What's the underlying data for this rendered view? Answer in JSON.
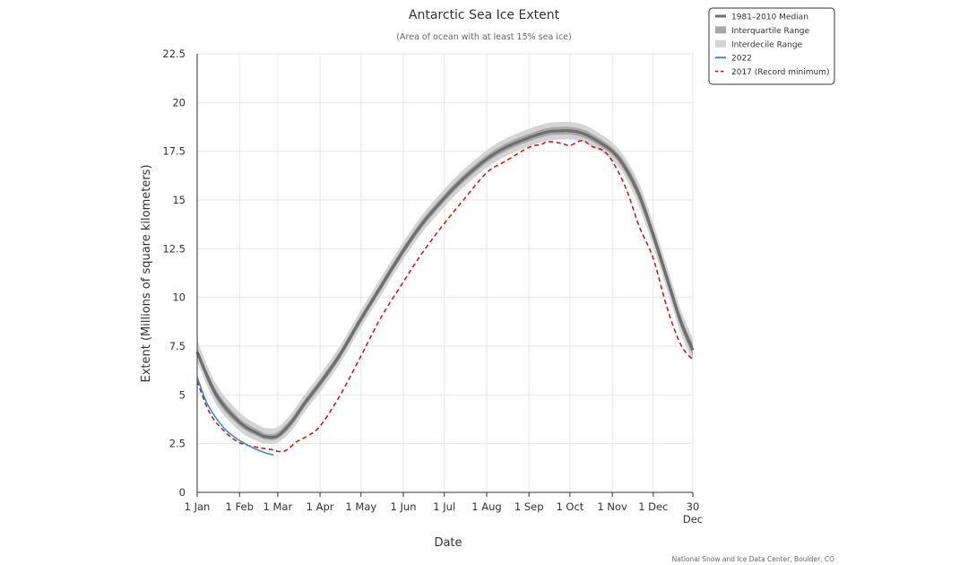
{
  "chart_data": {
    "type": "line",
    "title": "Antarctic Sea Ice Extent",
    "subtitle": "(Area of ocean with at least 15% sea ice)",
    "xlabel": "Date",
    "ylabel": "Extent (Millions of square kilometers)",
    "credit": "National Snow and Ice Data Center, Boulder, CO",
    "ylim": [
      0,
      22.5
    ],
    "xlim": [
      1,
      364
    ],
    "y_ticks": [
      {
        "value": 0,
        "label": "0"
      },
      {
        "value": 2.5,
        "label": "2.5"
      },
      {
        "value": 5,
        "label": "5"
      },
      {
        "value": 7.5,
        "label": "7.5"
      },
      {
        "value": 10,
        "label": "10"
      },
      {
        "value": 12.5,
        "label": "12.5"
      },
      {
        "value": 15,
        "label": "15"
      },
      {
        "value": 17.5,
        "label": "17.5"
      },
      {
        "value": 20,
        "label": "20"
      },
      {
        "value": 22.5,
        "label": "22.5"
      }
    ],
    "x_ticks": [
      {
        "day": 1,
        "label": "1 Jan"
      },
      {
        "day": 32,
        "label": "1 Feb"
      },
      {
        "day": 60,
        "label": "1 Mar"
      },
      {
        "day": 91,
        "label": "1 Apr"
      },
      {
        "day": 121,
        "label": "1 May"
      },
      {
        "day": 152,
        "label": "1 Jun"
      },
      {
        "day": 182,
        "label": "1 Jul"
      },
      {
        "day": 213,
        "label": "1 Aug"
      },
      {
        "day": 244,
        "label": "1 Sep"
      },
      {
        "day": 274,
        "label": "1 Oct"
      },
      {
        "day": 305,
        "label": "1 Nov"
      },
      {
        "day": 335,
        "label": "1 Dec"
      },
      {
        "day": 364,
        "label": "30\nDec"
      }
    ],
    "grid": true,
    "legend_position": "top-right",
    "legend": [
      {
        "label": "1981–2010 Median",
        "symbol": "line-thick",
        "color": "#6e6e6e"
      },
      {
        "label": "Interquartile Range",
        "symbol": "box",
        "color": "#a8a8a8"
      },
      {
        "label": "Interdecile Range",
        "symbol": "box",
        "color": "#d4d4d4"
      },
      {
        "label": "2022",
        "symbol": "line",
        "color": "#3a8fc9"
      },
      {
        "label": "2017 (Record minimum)",
        "symbol": "dash",
        "color": "#c21f1f"
      }
    ],
    "x": [
      1,
      15,
      32,
      46,
      52,
      60,
      70,
      80,
      91,
      105,
      121,
      135,
      152,
      166,
      182,
      196,
      213,
      227,
      244,
      258,
      268,
      274,
      282,
      290,
      305,
      315,
      325,
      335,
      345,
      355,
      364
    ],
    "series": [
      {
        "name": "1981–2010 Median",
        "role": "median",
        "color": "#6e6e6e",
        "values": [
          7.2,
          5.0,
          3.6,
          3.0,
          2.85,
          2.9,
          3.6,
          4.6,
          5.6,
          7.0,
          8.9,
          10.5,
          12.4,
          13.8,
          15.1,
          16.1,
          17.1,
          17.7,
          18.2,
          18.5,
          18.55,
          18.55,
          18.45,
          18.2,
          17.5,
          16.6,
          15.2,
          13.2,
          11.0,
          8.8,
          7.3
        ]
      },
      {
        "name": "Interquartile Range",
        "role": "band",
        "color": "#a8a8a8",
        "lower": [
          7.0,
          4.75,
          3.4,
          2.85,
          2.7,
          2.75,
          3.4,
          4.4,
          5.4,
          6.8,
          8.7,
          10.3,
          12.2,
          13.6,
          14.9,
          15.9,
          16.9,
          17.5,
          18.0,
          18.3,
          18.35,
          18.35,
          18.25,
          18.0,
          17.3,
          16.35,
          14.9,
          12.9,
          10.7,
          8.5,
          7.0
        ],
        "upper": [
          7.4,
          5.25,
          3.8,
          3.2,
          3.0,
          3.1,
          3.8,
          4.8,
          5.8,
          7.2,
          9.1,
          10.7,
          12.6,
          14.0,
          15.3,
          16.3,
          17.3,
          17.9,
          18.4,
          18.7,
          18.75,
          18.75,
          18.65,
          18.4,
          17.7,
          16.85,
          15.5,
          13.5,
          11.3,
          9.1,
          7.6
        ]
      },
      {
        "name": "Interdecile Range",
        "role": "band",
        "color": "#d4d4d4",
        "lower": [
          6.7,
          4.5,
          3.15,
          2.6,
          2.5,
          2.55,
          3.15,
          4.15,
          5.15,
          6.55,
          8.45,
          10.05,
          11.95,
          13.35,
          14.65,
          15.65,
          16.65,
          17.25,
          17.75,
          18.05,
          18.1,
          18.1,
          18.0,
          17.75,
          17.05,
          16.1,
          14.6,
          12.6,
          10.4,
          8.2,
          6.7
        ],
        "upper": [
          7.8,
          5.55,
          4.1,
          3.45,
          3.3,
          3.35,
          4.05,
          5.05,
          6.05,
          7.45,
          9.35,
          10.95,
          12.85,
          14.25,
          15.55,
          16.55,
          17.55,
          18.15,
          18.65,
          18.95,
          19.0,
          19.0,
          18.9,
          18.65,
          17.95,
          17.1,
          15.8,
          13.8,
          11.6,
          9.4,
          7.9
        ]
      },
      {
        "name": "2022",
        "role": "line",
        "color": "#3a8fc9",
        "x": [
          1,
          8,
          15,
          22,
          29,
          36,
          43,
          50,
          55,
          57
        ],
        "values": [
          5.9,
          4.6,
          3.8,
          3.2,
          2.8,
          2.5,
          2.25,
          2.05,
          1.95,
          1.92
        ]
      },
      {
        "name": "2017 (Record minimum)",
        "role": "dash",
        "color": "#c21f1f",
        "x": [
          1,
          10,
          20,
          32,
          46,
          55,
          60,
          66,
          74,
          82,
          91,
          105,
          121,
          135,
          152,
          166,
          182,
          196,
          213,
          227,
          244,
          253,
          258,
          268,
          274,
          283,
          290,
          298,
          305,
          315,
          325,
          335,
          345,
          355,
          364
        ],
        "values": [
          5.7,
          4.1,
          3.2,
          2.55,
          2.3,
          2.2,
          2.1,
          2.15,
          2.6,
          2.9,
          3.4,
          4.9,
          7.0,
          8.9,
          10.8,
          12.3,
          13.8,
          15.0,
          16.4,
          17.0,
          17.7,
          17.85,
          18.0,
          17.9,
          17.8,
          18.05,
          17.75,
          17.55,
          17.0,
          15.6,
          13.6,
          12.0,
          9.5,
          7.6,
          6.8
        ]
      }
    ]
  }
}
